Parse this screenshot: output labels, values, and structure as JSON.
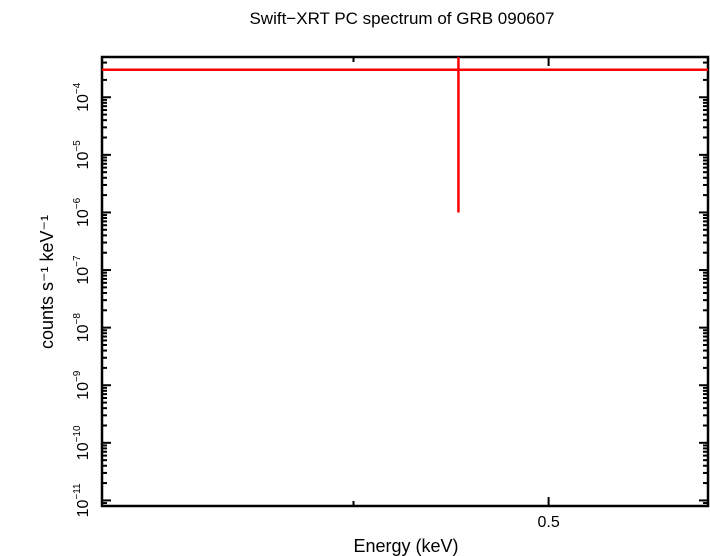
{
  "chart_data": {
    "type": "scatter",
    "title": "Swift−XRT PC spectrum of GRB 090607",
    "xlabel": "Energy (keV)",
    "ylabel": "counts s⁻¹ keV⁻¹",
    "x_scale": "log",
    "y_scale": "log",
    "xlim": [
      0.3,
      0.6
    ],
    "ylim": [
      8e-12,
      0.0005
    ],
    "x_tick_labels": [
      {
        "value": 0.5,
        "label": "0.5"
      }
    ],
    "y_tick_labels": [
      {
        "base": "10",
        "exp": "−11",
        "value": 1e-11
      },
      {
        "base": "10",
        "exp": "−10",
        "value": 1e-10
      },
      {
        "base": "10",
        "exp": "−9",
        "value": 1e-09
      },
      {
        "base": "10",
        "exp": "−8",
        "value": 1e-08
      },
      {
        "base": "10",
        "exp": "−7",
        "value": 1e-07
      },
      {
        "base": "10",
        "exp": "−6",
        "value": 1e-06
      },
      {
        "base": "10",
        "exp": "−5",
        "value": 1e-05
      },
      {
        "base": "10",
        "exp": "−4",
        "value": 0.0001
      }
    ],
    "series": [
      {
        "color": "#ff0000",
        "points": [
          {
            "x": 0.451,
            "y": 0.0003,
            "xerr": [
              0.151,
              0.149
            ],
            "yerr": [
              0.000299,
              0.0002
            ]
          }
        ]
      }
    ],
    "grid": false
  }
}
